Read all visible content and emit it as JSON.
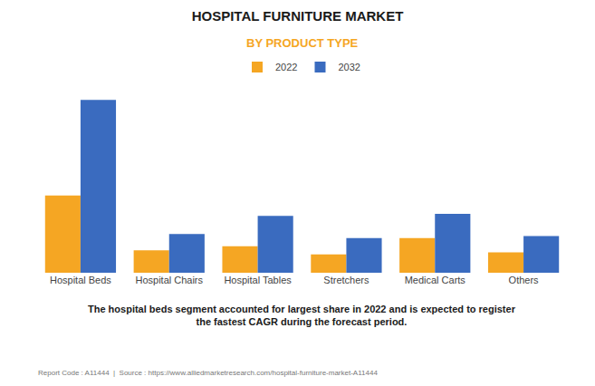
{
  "chart_data": {
    "type": "bar",
    "title": "HOSPITAL FURNITURE MARKET",
    "subtitle": "BY PRODUCT TYPE",
    "categories": [
      "Hospital Beds",
      "Hospital Chairs",
      "Hospital Tables",
      "Stretchers",
      "Medical Carts",
      "Others"
    ],
    "series": [
      {
        "name": "2022",
        "color": "#F5A623",
        "values": [
          3.8,
          1.1,
          1.3,
          0.9,
          1.7,
          1.0
        ]
      },
      {
        "name": "2032",
        "color": "#3A6BBF",
        "values": [
          8.5,
          1.9,
          2.8,
          1.7,
          2.9,
          1.8
        ]
      }
    ],
    "ylim": [
      0,
      9.18
    ],
    "grid": false,
    "legend": "top",
    "tick_labels": "x",
    "annotations": [
      "The hospital beds segment accounted for largest share in 2022 and is expected to register\nthe fastest CAGR during the forecast period.",
      "Report Code : A11444  |  Source : https://www.alliedmarketresearch.com/hospital-furniture-market-A11444"
    ]
  }
}
